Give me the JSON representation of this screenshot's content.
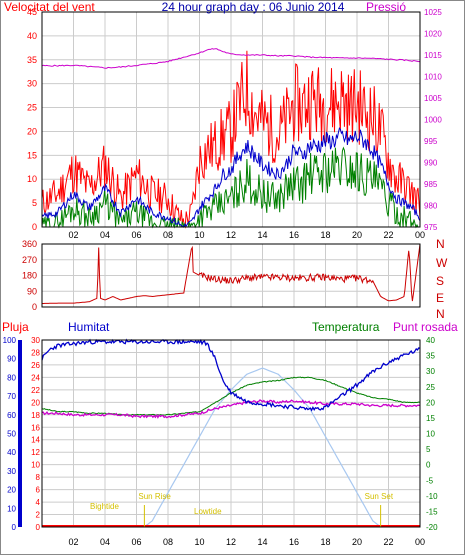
{
  "header": {
    "wind_label": "Velocitat del vent",
    "title": "24 hour graph day : 06 Junio 2014",
    "pressure_label": "Pressió"
  },
  "lower_header": {
    "rain_label": "Pluja",
    "humidity_label": "Humitat",
    "temperature_label": "Temperatura",
    "dewpoint_label": "Punt rosada"
  },
  "sun_labels": {
    "sunrise": "Sun Rise",
    "sunset": "Sun Set",
    "bighide": "Bightide",
    "lowtide": "Lowtide"
  },
  "direction_letters": [
    "N",
    "W",
    "S",
    "E",
    "N"
  ],
  "colors": {
    "wind_gust": "#ff0000",
    "wind_avg": "#0000cc",
    "wind_low": "#008000",
    "pressure": "#cc00cc",
    "direction": "#cc0000",
    "rain": "#ff0000",
    "humidity": "#0000cc",
    "temperature": "#008000",
    "dewpoint": "#cc00cc",
    "solar": "#a8c8f0",
    "tide_text": "#d4c000",
    "grid": "#cccccc",
    "border": "#000000"
  },
  "chart_data": [
    {
      "id": "wind_pressure",
      "type": "line",
      "x_ticks": [
        "02",
        "04",
        "06",
        "08",
        "10",
        "12",
        "14",
        "16",
        "18",
        "20",
        "22",
        "00"
      ],
      "x_range": [
        0,
        24
      ],
      "left_axis": {
        "label": "Velocitat del vent",
        "ticks": [
          0,
          5,
          10,
          15,
          20,
          25,
          30,
          35,
          40,
          45
        ],
        "range": [
          0,
          45
        ]
      },
      "right_axis": {
        "label": "Pressió",
        "ticks": [
          975,
          980,
          985,
          990,
          995,
          1000,
          1005,
          1010,
          1015,
          1020,
          1025
        ],
        "range": [
          975,
          1025
        ]
      },
      "series": [
        {
          "name": "Velocitat del vent",
          "axis": "left",
          "x": [
            0,
            1,
            2,
            3,
            4,
            5,
            6,
            7,
            8,
            8.5,
            9,
            9.5,
            10,
            10.5,
            11,
            11.5,
            12,
            12.5,
            13,
            13.5,
            14,
            14.5,
            15,
            15.5,
            16,
            16.5,
            17,
            17.5,
            18,
            18.5,
            19,
            19.5,
            20,
            20.5,
            21,
            21.5,
            22,
            22.5,
            23,
            23.5,
            24
          ],
          "y": [
            5,
            7,
            12,
            8,
            13,
            6,
            11,
            7,
            6,
            3,
            1,
            3,
            14,
            16,
            17,
            19,
            20,
            25,
            29,
            24,
            22,
            21,
            19,
            22,
            26,
            25,
            27,
            26,
            26,
            26,
            27,
            25,
            26,
            24,
            23,
            20,
            14,
            10,
            9,
            7,
            5
          ]
        },
        {
          "name": "Mitjana",
          "axis": "left",
          "x": [
            0,
            1,
            2,
            3,
            4,
            5,
            6,
            7,
            8,
            8.5,
            9,
            9.5,
            10,
            10.5,
            11,
            11.5,
            12,
            12.5,
            13,
            13.5,
            14,
            14.5,
            15,
            15.5,
            16,
            16.5,
            17,
            17.5,
            18,
            18.5,
            19,
            19.5,
            20,
            20.5,
            21,
            21.5,
            22,
            22.5,
            23,
            23.5,
            24
          ],
          "y": [
            2,
            3,
            7,
            4,
            8,
            3,
            6,
            3,
            2,
            1,
            0,
            1,
            4,
            6,
            8,
            11,
            12,
            15,
            17,
            15,
            13,
            12,
            11,
            13,
            16,
            15,
            17,
            17,
            18,
            18,
            19,
            18,
            19,
            18,
            16,
            13,
            9,
            6,
            5,
            4,
            2
          ]
        },
        {
          "name": "Mínima",
          "axis": "left",
          "x": [
            0,
            1,
            2,
            3,
            4,
            5,
            6,
            7,
            8,
            8.5,
            9,
            9.5,
            10,
            10.5,
            11,
            11.5,
            12,
            12.5,
            13,
            13.5,
            14,
            14.5,
            15,
            15.5,
            16,
            16.5,
            17,
            17.5,
            18,
            18.5,
            19,
            19.5,
            20,
            20.5,
            21,
            21.5,
            22,
            22.5,
            23,
            23.5,
            24
          ],
          "y": [
            0,
            1,
            4,
            2,
            5,
            1,
            3,
            1,
            0,
            0,
            0,
            0,
            2,
            3,
            4,
            5,
            6,
            8,
            10,
            8,
            7,
            6,
            6,
            8,
            9,
            9,
            11,
            11,
            12,
            12,
            13,
            12,
            12,
            11,
            10,
            8,
            5,
            3,
            2,
            1,
            0
          ]
        },
        {
          "name": "Pressió",
          "axis": "right",
          "x": [
            0,
            1,
            2,
            3,
            4,
            5,
            6,
            7,
            8,
            9,
            10,
            10.5,
            11,
            11.5,
            12,
            13,
            14,
            15,
            16,
            17,
            18,
            19,
            20,
            21,
            22,
            23,
            24
          ],
          "y": [
            1012.5,
            1012.5,
            1012.6,
            1012.3,
            1012.0,
            1012.2,
            1012.6,
            1013.0,
            1013.5,
            1014.5,
            1015.5,
            1016.2,
            1016.5,
            1015.8,
            1015.2,
            1015.0,
            1015.0,
            1014.8,
            1014.8,
            1014.5,
            1014.4,
            1014.3,
            1014.3,
            1014.2,
            1014.0,
            1013.8,
            1013.5
          ]
        }
      ]
    },
    {
      "id": "wind_direction",
      "type": "line",
      "x_range": [
        0,
        24
      ],
      "left_axis": {
        "ticks": [
          0,
          90,
          180,
          270,
          360
        ],
        "range": [
          0,
          360
        ]
      },
      "series": [
        {
          "name": "Direcció",
          "x": [
            0,
            1,
            2,
            3,
            3.5,
            3.6,
            3.7,
            4,
            4.5,
            5,
            5.5,
            6,
            6.5,
            7,
            8,
            9,
            9.5,
            9.55,
            9.6,
            10,
            10.5,
            11,
            12,
            13,
            14,
            15,
            16,
            17,
            18,
            19,
            20,
            21,
            21.5,
            22,
            22.5,
            23,
            23.3,
            23.5,
            24
          ],
          "y": [
            20,
            22,
            22,
            30,
            50,
            340,
            50,
            40,
            60,
            40,
            50,
            60,
            65,
            60,
            70,
            80,
            340,
            340,
            200,
            180,
            170,
            160,
            150,
            165,
            170,
            170,
            165,
            168,
            170,
            160,
            165,
            150,
            60,
            35,
            40,
            60,
            340,
            20,
            360
          ]
        }
      ]
    },
    {
      "id": "temp_humidity",
      "type": "line",
      "x_ticks": [
        "02",
        "04",
        "06",
        "08",
        "10",
        "12",
        "14",
        "16",
        "18",
        "20",
        "22",
        "00"
      ],
      "x_range": [
        0,
        24
      ],
      "left_axis_1": {
        "label": "Humitat",
        "ticks": [
          0,
          10,
          20,
          30,
          40,
          50,
          60,
          70,
          80,
          90,
          100
        ],
        "range": [
          0,
          100
        ]
      },
      "left_axis_2": {
        "label": "Pluja",
        "ticks": [
          0,
          2,
          4,
          6,
          8,
          10,
          12,
          14,
          16,
          18,
          20,
          22,
          24,
          26,
          28,
          30
        ],
        "range": [
          0,
          30
        ]
      },
      "right_axis": {
        "label": "Temperatura",
        "ticks": [
          -20,
          -15,
          -10,
          -5,
          0,
          5,
          10,
          15,
          20,
          25,
          30,
          35,
          40
        ],
        "range": [
          -20,
          40
        ]
      },
      "series": [
        {
          "name": "Humitat",
          "axis": "left_1",
          "x": [
            0,
            0.5,
            1,
            2,
            3,
            4,
            5,
            6,
            7,
            8,
            9,
            10,
            10.5,
            11,
            11.5,
            12,
            13,
            14,
            15,
            16,
            17,
            18,
            19,
            20,
            21,
            22,
            23,
            24
          ],
          "y": [
            90,
            95,
            97,
            98,
            99,
            99,
            99,
            99,
            99,
            99,
            99,
            99,
            98,
            90,
            78,
            72,
            67,
            66,
            65,
            64,
            63,
            64,
            70,
            76,
            83,
            88,
            92,
            95
          ]
        },
        {
          "name": "Temperatura",
          "axis": "right",
          "x": [
            0,
            1,
            2,
            3,
            4,
            5,
            6,
            7,
            8,
            9,
            10,
            11,
            12,
            13,
            14,
            15,
            16,
            17,
            18,
            19,
            20,
            21,
            22,
            23,
            24
          ],
          "y": [
            18,
            17,
            17,
            16.5,
            16.5,
            16,
            16,
            16,
            16,
            16.5,
            17,
            20,
            23,
            25.5,
            26.5,
            27,
            28,
            28,
            27,
            25,
            23,
            21.5,
            21,
            20,
            20
          ]
        },
        {
          "name": "Punt rosada",
          "axis": "right",
          "x": [
            0,
            1,
            2,
            3,
            4,
            5,
            6,
            7,
            8,
            9,
            10,
            11,
            12,
            13,
            14,
            15,
            16,
            17,
            18,
            19,
            20,
            21,
            22,
            23,
            24
          ],
          "y": [
            16.5,
            16.5,
            16,
            16,
            16,
            16,
            15.5,
            15.5,
            15.5,
            16,
            16.5,
            18,
            19,
            20,
            20.5,
            20,
            20.5,
            20,
            19.5,
            19.5,
            19.5,
            19,
            19,
            19,
            19
          ]
        },
        {
          "name": "Pluja",
          "axis": "left_2",
          "x": [
            0,
            24
          ],
          "y": [
            0,
            0
          ]
        },
        {
          "name": "Solar",
          "axis": "right",
          "x": [
            6.5,
            7,
            8,
            9,
            10,
            11,
            12,
            13,
            14,
            15,
            16,
            17,
            18,
            19,
            20,
            21,
            21.5
          ],
          "y": [
            -20,
            -18,
            -9,
            0,
            9,
            18,
            24,
            29,
            31,
            29,
            24,
            18,
            9,
            0,
            -9,
            -18,
            -20
          ]
        }
      ]
    }
  ]
}
